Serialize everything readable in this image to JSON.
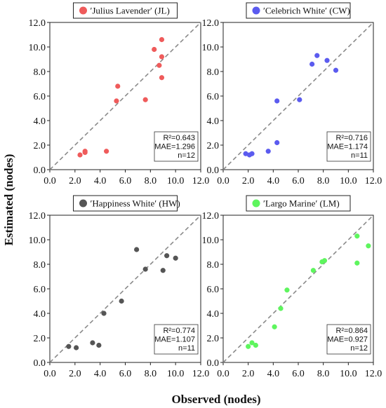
{
  "figure": {
    "xlabel": "Observed (nodes)",
    "ylabel": "Estimated (nodes)"
  },
  "chart_data": [
    {
      "type": "scatter",
      "legend": "′Julius Lavender′ (JL)",
      "color": "#ef5b5b",
      "xlim": [
        0,
        12
      ],
      "ylim": [
        0,
        12
      ],
      "xticks": [
        "0.0",
        "2.0",
        "4.0",
        "6.0",
        "8.0",
        "10.0",
        "12.0"
      ],
      "yticks": [
        "0.0",
        "2.0",
        "4.0",
        "6.0",
        "8.0",
        "10.0",
        "12.0"
      ],
      "reference_line": "1:1",
      "stats": [
        "R²=0.643",
        "MAE=1.296",
        "n=12"
      ],
      "points": [
        {
          "x": 2.4,
          "y": 1.2
        },
        {
          "x": 2.8,
          "y": 1.4
        },
        {
          "x": 2.8,
          "y": 1.5
        },
        {
          "x": 4.5,
          "y": 1.5
        },
        {
          "x": 5.3,
          "y": 5.6
        },
        {
          "x": 5.4,
          "y": 6.8
        },
        {
          "x": 7.6,
          "y": 5.7
        },
        {
          "x": 8.3,
          "y": 9.8
        },
        {
          "x": 8.7,
          "y": 8.5
        },
        {
          "x": 8.9,
          "y": 9.2
        },
        {
          "x": 8.9,
          "y": 10.6
        },
        {
          "x": 8.9,
          "y": 7.5
        }
      ]
    },
    {
      "type": "scatter",
      "legend": "′Celebrich White′ (CW)",
      "color": "#5b5bef",
      "xlim": [
        0,
        12
      ],
      "ylim": [
        0,
        12
      ],
      "xticks": [
        "0.0",
        "2.0",
        "4.0",
        "6.0",
        "8.0",
        "10.0",
        "12.0"
      ],
      "yticks": [
        "0.0",
        "2.0",
        "4.0",
        "6.0",
        "8.0",
        "10.0",
        "12.0"
      ],
      "reference_line": "1:1",
      "stats": [
        "R²=0.716",
        "MAE=1.174",
        "n=11"
      ],
      "points": [
        {
          "x": 1.8,
          "y": 1.3
        },
        {
          "x": 2.1,
          "y": 1.2
        },
        {
          "x": 2.3,
          "y": 1.3
        },
        {
          "x": 3.6,
          "y": 1.5
        },
        {
          "x": 4.3,
          "y": 2.2
        },
        {
          "x": 4.3,
          "y": 5.6
        },
        {
          "x": 6.1,
          "y": 5.7
        },
        {
          "x": 7.1,
          "y": 8.6
        },
        {
          "x": 7.5,
          "y": 9.3
        },
        {
          "x": 8.3,
          "y": 8.9
        },
        {
          "x": 9.0,
          "y": 8.1
        }
      ]
    },
    {
      "type": "scatter",
      "legend": "′Happiness White′ (HW)",
      "color": "#555555",
      "xlim": [
        0,
        12
      ],
      "ylim": [
        0,
        12
      ],
      "xticks": [
        "0.0",
        "2.0",
        "4.0",
        "6.0",
        "8.0",
        "10.0",
        "12.0"
      ],
      "yticks": [
        "0.0",
        "2.0",
        "4.0",
        "6.0",
        "8.0",
        "10.0",
        "12.0"
      ],
      "reference_line": "1:1",
      "stats": [
        "R²=0.774",
        "MAE=1.107",
        "n=11"
      ],
      "points": [
        {
          "x": 1.5,
          "y": 1.3
        },
        {
          "x": 2.1,
          "y": 1.2
        },
        {
          "x": 3.4,
          "y": 1.6
        },
        {
          "x": 3.9,
          "y": 1.4
        },
        {
          "x": 4.3,
          "y": 4.0
        },
        {
          "x": 5.7,
          "y": 5.0
        },
        {
          "x": 6.9,
          "y": 9.2
        },
        {
          "x": 7.6,
          "y": 7.6
        },
        {
          "x": 9.0,
          "y": 7.5
        },
        {
          "x": 9.3,
          "y": 8.7
        },
        {
          "x": 10.0,
          "y": 8.5
        }
      ]
    },
    {
      "type": "scatter",
      "legend": "′Largo Marine′ (LM)",
      "color": "#5ef55e",
      "xlim": [
        0,
        12
      ],
      "ylim": [
        0,
        12
      ],
      "xticks": [
        "0.0",
        "2.0",
        "4.0",
        "6.0",
        "8.0",
        "10.0",
        "12.0"
      ],
      "yticks": [
        "0.0",
        "2.0",
        "4.0",
        "6.0",
        "8.0",
        "10.0",
        "12.0"
      ],
      "reference_line": "1:1",
      "stats": [
        "R²=0.864",
        "MAE=0.927",
        "n=12"
      ],
      "points": [
        {
          "x": 2.0,
          "y": 1.3
        },
        {
          "x": 2.3,
          "y": 1.6
        },
        {
          "x": 2.6,
          "y": 1.4
        },
        {
          "x": 4.1,
          "y": 2.9
        },
        {
          "x": 4.6,
          "y": 4.4
        },
        {
          "x": 5.1,
          "y": 5.9
        },
        {
          "x": 7.2,
          "y": 7.5
        },
        {
          "x": 7.9,
          "y": 8.2
        },
        {
          "x": 8.1,
          "y": 8.3
        },
        {
          "x": 10.7,
          "y": 8.1
        },
        {
          "x": 10.7,
          "y": 10.3
        },
        {
          "x": 11.6,
          "y": 9.5
        }
      ]
    }
  ]
}
